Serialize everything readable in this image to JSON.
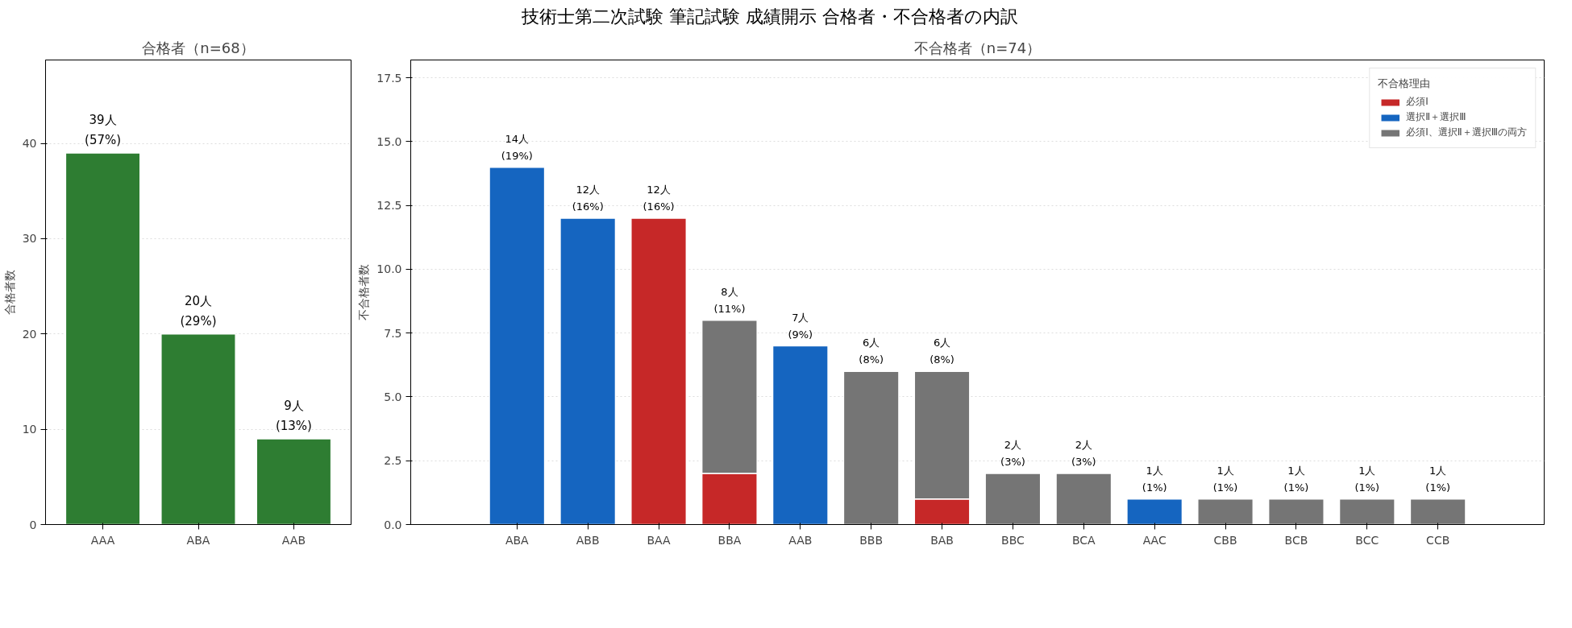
{
  "chart_data": [
    {
      "type": "bar",
      "title": "合格者（n=68）",
      "annotations": [
        "技術士第二次試験 筆記試験 成績開示 合格者・不合格者の内訳"
      ],
      "ylabel": "合格者数",
      "categories": [
        "AAA",
        "ABA",
        "AAB"
      ],
      "values": [
        39,
        20,
        9
      ],
      "color": "#2e7d32",
      "value_labels": [
        "39人\n(57%)",
        "20人\n(29%)",
        "9人\n(13%)"
      ],
      "ylim": [
        0,
        48.75
      ],
      "yticks": [
        0,
        10,
        20,
        30,
        40
      ],
      "grid": "y"
    },
    {
      "type": "bar",
      "title": "不合格者（n=74）",
      "ylabel": "不合格者数",
      "legend_title": "不合格理由",
      "legend": "top right",
      "stacked": true,
      "categories": [
        "ABA",
        "ABB",
        "BAA",
        "BBA",
        "AAB",
        "BBB",
        "BAB",
        "BBC",
        "BCA",
        "AAC",
        "CBB",
        "BCB",
        "BCC",
        "CCB"
      ],
      "series": [
        {
          "name": "必須Ⅰ",
          "color": "#c62828",
          "values": [
            null,
            null,
            12,
            2,
            null,
            null,
            1,
            null,
            null,
            null,
            null,
            null,
            null,
            null
          ]
        },
        {
          "name": "選択Ⅱ＋選択Ⅲ",
          "color": "#1565c0",
          "values": [
            14,
            12,
            null,
            null,
            7,
            null,
            null,
            null,
            null,
            1,
            null,
            null,
            null,
            null
          ]
        },
        {
          "name": "必須Ⅰ、選択Ⅱ＋選択Ⅲの両方",
          "color": "#757575",
          "values": [
            null,
            null,
            null,
            6,
            null,
            6,
            5,
            2,
            2,
            null,
            1,
            1,
            1,
            1
          ]
        }
      ],
      "totals": [
        "14人\n(19%)",
        "12人\n(16%)",
        "12人\n(16%)",
        "8人\n(11%)",
        "7人\n(9%)",
        "6人\n(8%)",
        "6人\n(8%)",
        "2人\n(3%)",
        "2人\n(3%)",
        "1人\n(1%)",
        "1人\n(1%)",
        "1人\n(1%)",
        "1人\n(1%)",
        "1人\n(1%)"
      ],
      "ylim": [
        0,
        18.2
      ],
      "yticks": [
        {
          "value": 0,
          "label": "0.0"
        },
        2.5,
        {
          "value": 5,
          "label": "5.0"
        },
        7.5,
        {
          "value": 10,
          "label": "10.0"
        },
        12.5,
        {
          "value": 15,
          "label": "15.0"
        },
        17.5
      ],
      "grid": "y"
    }
  ]
}
